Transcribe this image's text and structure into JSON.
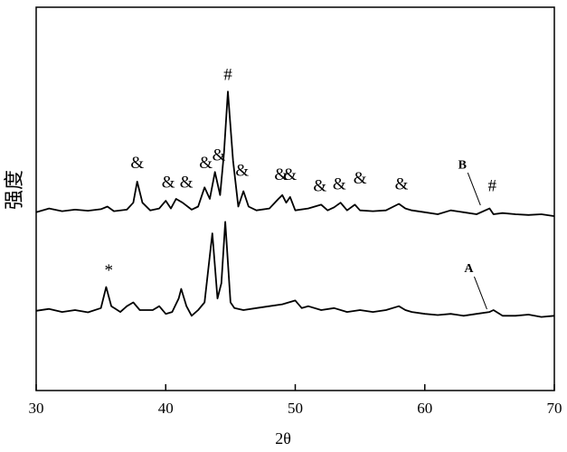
{
  "chart_data": {
    "type": "line",
    "x_label": "2θ",
    "y_label": "强度",
    "xlim": [
      30,
      70
    ],
    "xticks": [
      30,
      40,
      50,
      60,
      70
    ],
    "ylim": [
      0,
      100
    ],
    "series": [
      {
        "name": "B",
        "color": "#000000",
        "label_x": 62.9,
        "label_y": 58.7,
        "x": [
          30,
          31,
          32,
          33,
          34,
          35,
          35.5,
          36,
          37,
          37.5,
          37.8,
          38.2,
          38.8,
          39.5,
          40,
          40.4,
          40.8,
          41.3,
          42,
          42.5,
          43,
          43.4,
          43.8,
          44.2,
          44.5,
          44.8,
          45.2,
          45.6,
          46,
          46.4,
          47,
          48,
          48.7,
          49,
          49.3,
          49.6,
          50,
          51,
          52,
          52.5,
          53,
          53.5,
          54,
          54.6,
          55,
          56,
          57,
          58,
          58.5,
          59,
          60,
          61,
          62,
          63,
          64,
          65,
          65.3,
          66,
          67,
          68,
          69,
          70
        ],
        "values": [
          46.5,
          47.5,
          46.8,
          47.2,
          46.9,
          47.3,
          48,
          46.8,
          47.2,
          49,
          54.5,
          49,
          47,
          47.5,
          49.5,
          47.5,
          50,
          49,
          47.2,
          48,
          53,
          50,
          57,
          51,
          62,
          78,
          60,
          48,
          52,
          48,
          47,
          47.5,
          50,
          51,
          49,
          50.5,
          47,
          47.5,
          48.5,
          47,
          47.8,
          49,
          47,
          48.5,
          47,
          46.8,
          47,
          48.7,
          47.5,
          47,
          46.5,
          46,
          47,
          46.5,
          46,
          47.5,
          46,
          46.3,
          46,
          45.8,
          46,
          45.5
        ]
      },
      {
        "name": "A",
        "color": "#000000",
        "label_x": 63.4,
        "label_y": 31.6,
        "x": [
          30,
          31,
          32,
          33,
          34,
          35,
          35.4,
          35.8,
          36.5,
          37,
          37.5,
          38,
          39,
          39.5,
          40,
          40.5,
          41,
          41.2,
          41.6,
          42,
          42.5,
          43,
          43.6,
          44,
          44.3,
          44.6,
          45,
          45.3,
          46,
          47,
          48,
          49,
          50,
          50.5,
          51,
          52,
          53,
          54,
          55,
          56,
          57,
          58,
          58.5,
          59,
          60,
          61,
          62,
          63,
          64,
          65,
          65.3,
          66,
          67,
          68,
          69,
          70
        ],
        "values": [
          20.8,
          21.3,
          20.5,
          21,
          20.4,
          21.5,
          27,
          22,
          20.5,
          22,
          23,
          21,
          21,
          22,
          20,
          20.5,
          24,
          26.5,
          22,
          19.5,
          21,
          23,
          41,
          24,
          28,
          44,
          23,
          21.5,
          21,
          21.5,
          22,
          22.5,
          23.5,
          21.5,
          22,
          21,
          21.5,
          20.5,
          21,
          20.5,
          21,
          22,
          21,
          20.5,
          20,
          19.7,
          20,
          19.5,
          20,
          20.5,
          21,
          19.5,
          19.5,
          19.8,
          19.2,
          19.5
        ]
      }
    ],
    "annotations": [
      {
        "text": "*",
        "x": 35.6,
        "y": 31
      },
      {
        "text": "&",
        "x": 37.8,
        "y": 59
      },
      {
        "text": "&",
        "x": 40.2,
        "y": 54
      },
      {
        "text": "&",
        "x": 41.6,
        "y": 54
      },
      {
        "text": "&",
        "x": 43.1,
        "y": 59
      },
      {
        "text": "&",
        "x": 44.1,
        "y": 61
      },
      {
        "text": "&",
        "x": 45.9,
        "y": 57
      },
      {
        "text": "&",
        "x": 48.9,
        "y": 56
      },
      {
        "text": "&",
        "x": 49.6,
        "y": 56
      },
      {
        "text": "&",
        "x": 51.9,
        "y": 53
      },
      {
        "text": "&",
        "x": 53.4,
        "y": 53.5
      },
      {
        "text": "&",
        "x": 55,
        "y": 55
      },
      {
        "text": "&",
        "x": 58.2,
        "y": 53.5
      },
      {
        "text": "#",
        "x": 44.8,
        "y": 82
      },
      {
        "text": "#",
        "x": 65.2,
        "y": 53
      }
    ]
  }
}
